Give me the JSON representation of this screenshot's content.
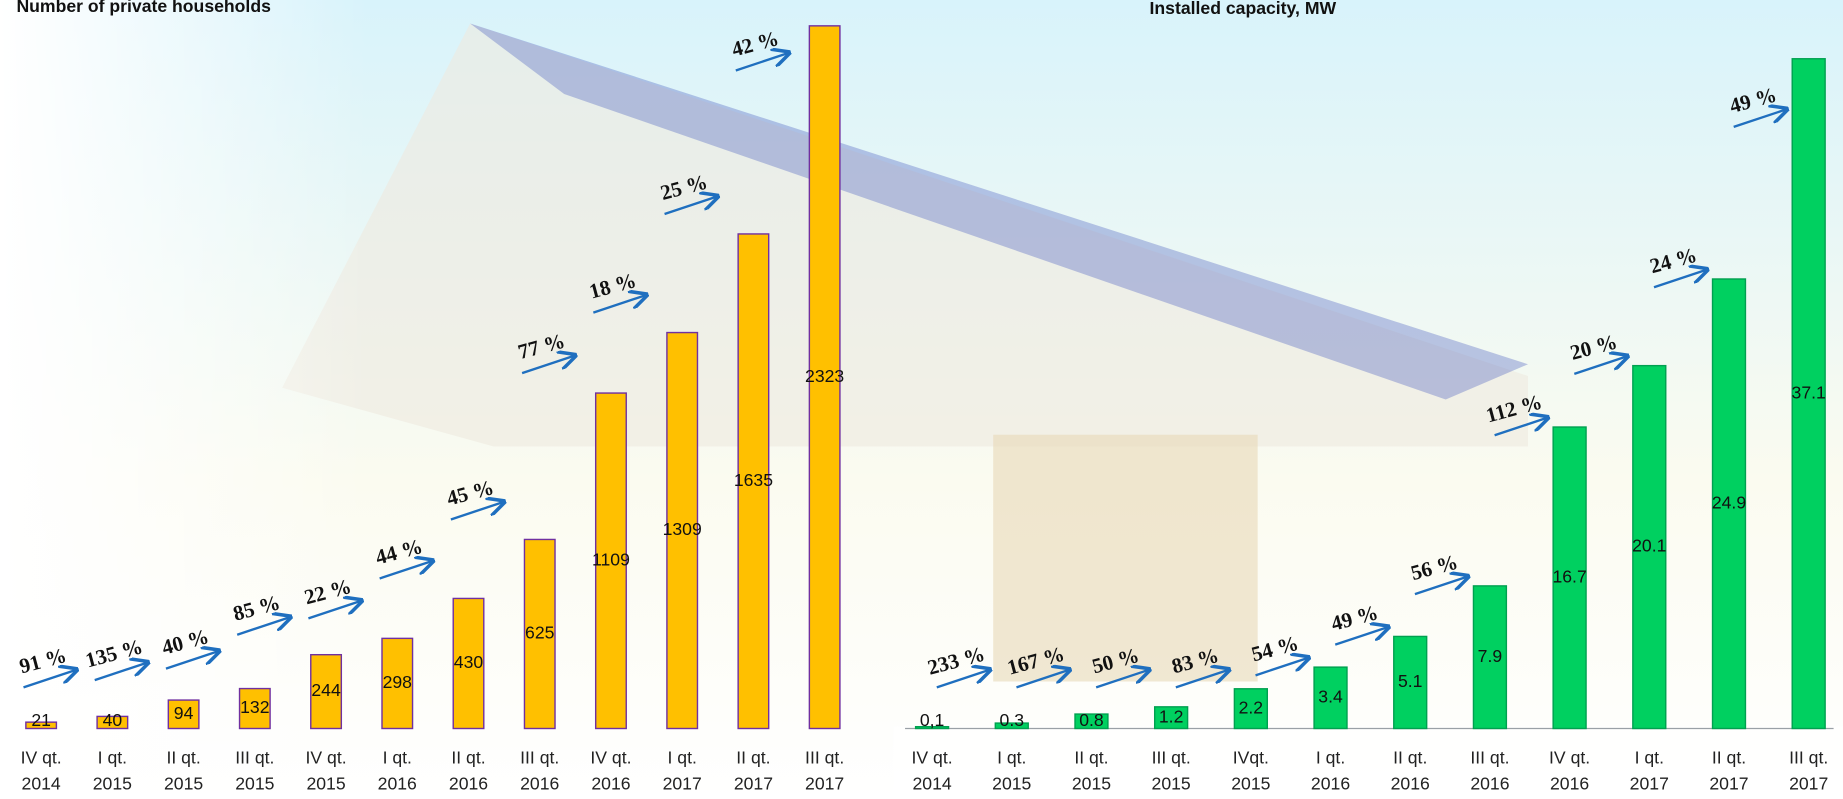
{
  "chart_data": [
    {
      "type": "bar",
      "title": "Number of private households",
      "categories": [
        "IV qt. 2014",
        "I qt. 2015",
        "II qt. 2015",
        "III qt. 2015",
        "IV qt. 2015",
        "I qt. 2016",
        "II qt. 2016",
        "III qt. 2016",
        "IV qt. 2016",
        "I qt. 2017",
        "II qt. 2017",
        "III qt. 2017"
      ],
      "values": [
        21,
        40,
        94,
        132,
        244,
        298,
        430,
        625,
        1109,
        1309,
        1635,
        2323
      ],
      "annotations": [
        "91 %",
        "135 %",
        "40 %",
        "85 %",
        "22 %",
        "44 %",
        "45 %",
        "77 %",
        "18 %",
        "25 %",
        "42 %"
      ],
      "color": "#ffc000",
      "ylim": [
        0,
        2323
      ]
    },
    {
      "type": "bar",
      "title": "Installed capacity, MW",
      "categories": [
        "IV qt. 2014",
        "I qt. 2015",
        "II qt. 2015",
        "III qt. 2015",
        "IVqt. 2015",
        "I qt. 2016",
        "II qt. 2016",
        "III qt. 2016",
        "IV qt. 2016",
        "I qt. 2017",
        "II qt. 2017",
        "III qt. 2017"
      ],
      "values": [
        0.1,
        0.3,
        0.8,
        1.2,
        2.2,
        3.4,
        5.1,
        7.9,
        16.7,
        20.1,
        24.9,
        37.1
      ],
      "value_labels": [
        "0,1",
        "0.3",
        "0.8",
        "1.2",
        "2.2",
        "3.4",
        "5.1",
        "7.9",
        "16.7",
        "20.1",
        "24.9",
        "37.1"
      ],
      "annotations": [
        "233 %",
        "167 %",
        "50 %",
        "83 %",
        "54 %",
        "49 %",
        "56 %",
        "112 %",
        "20 %",
        "24 %",
        "49 %"
      ],
      "color": "#00d060",
      "ylim": [
        0,
        37.1
      ]
    }
  ]
}
